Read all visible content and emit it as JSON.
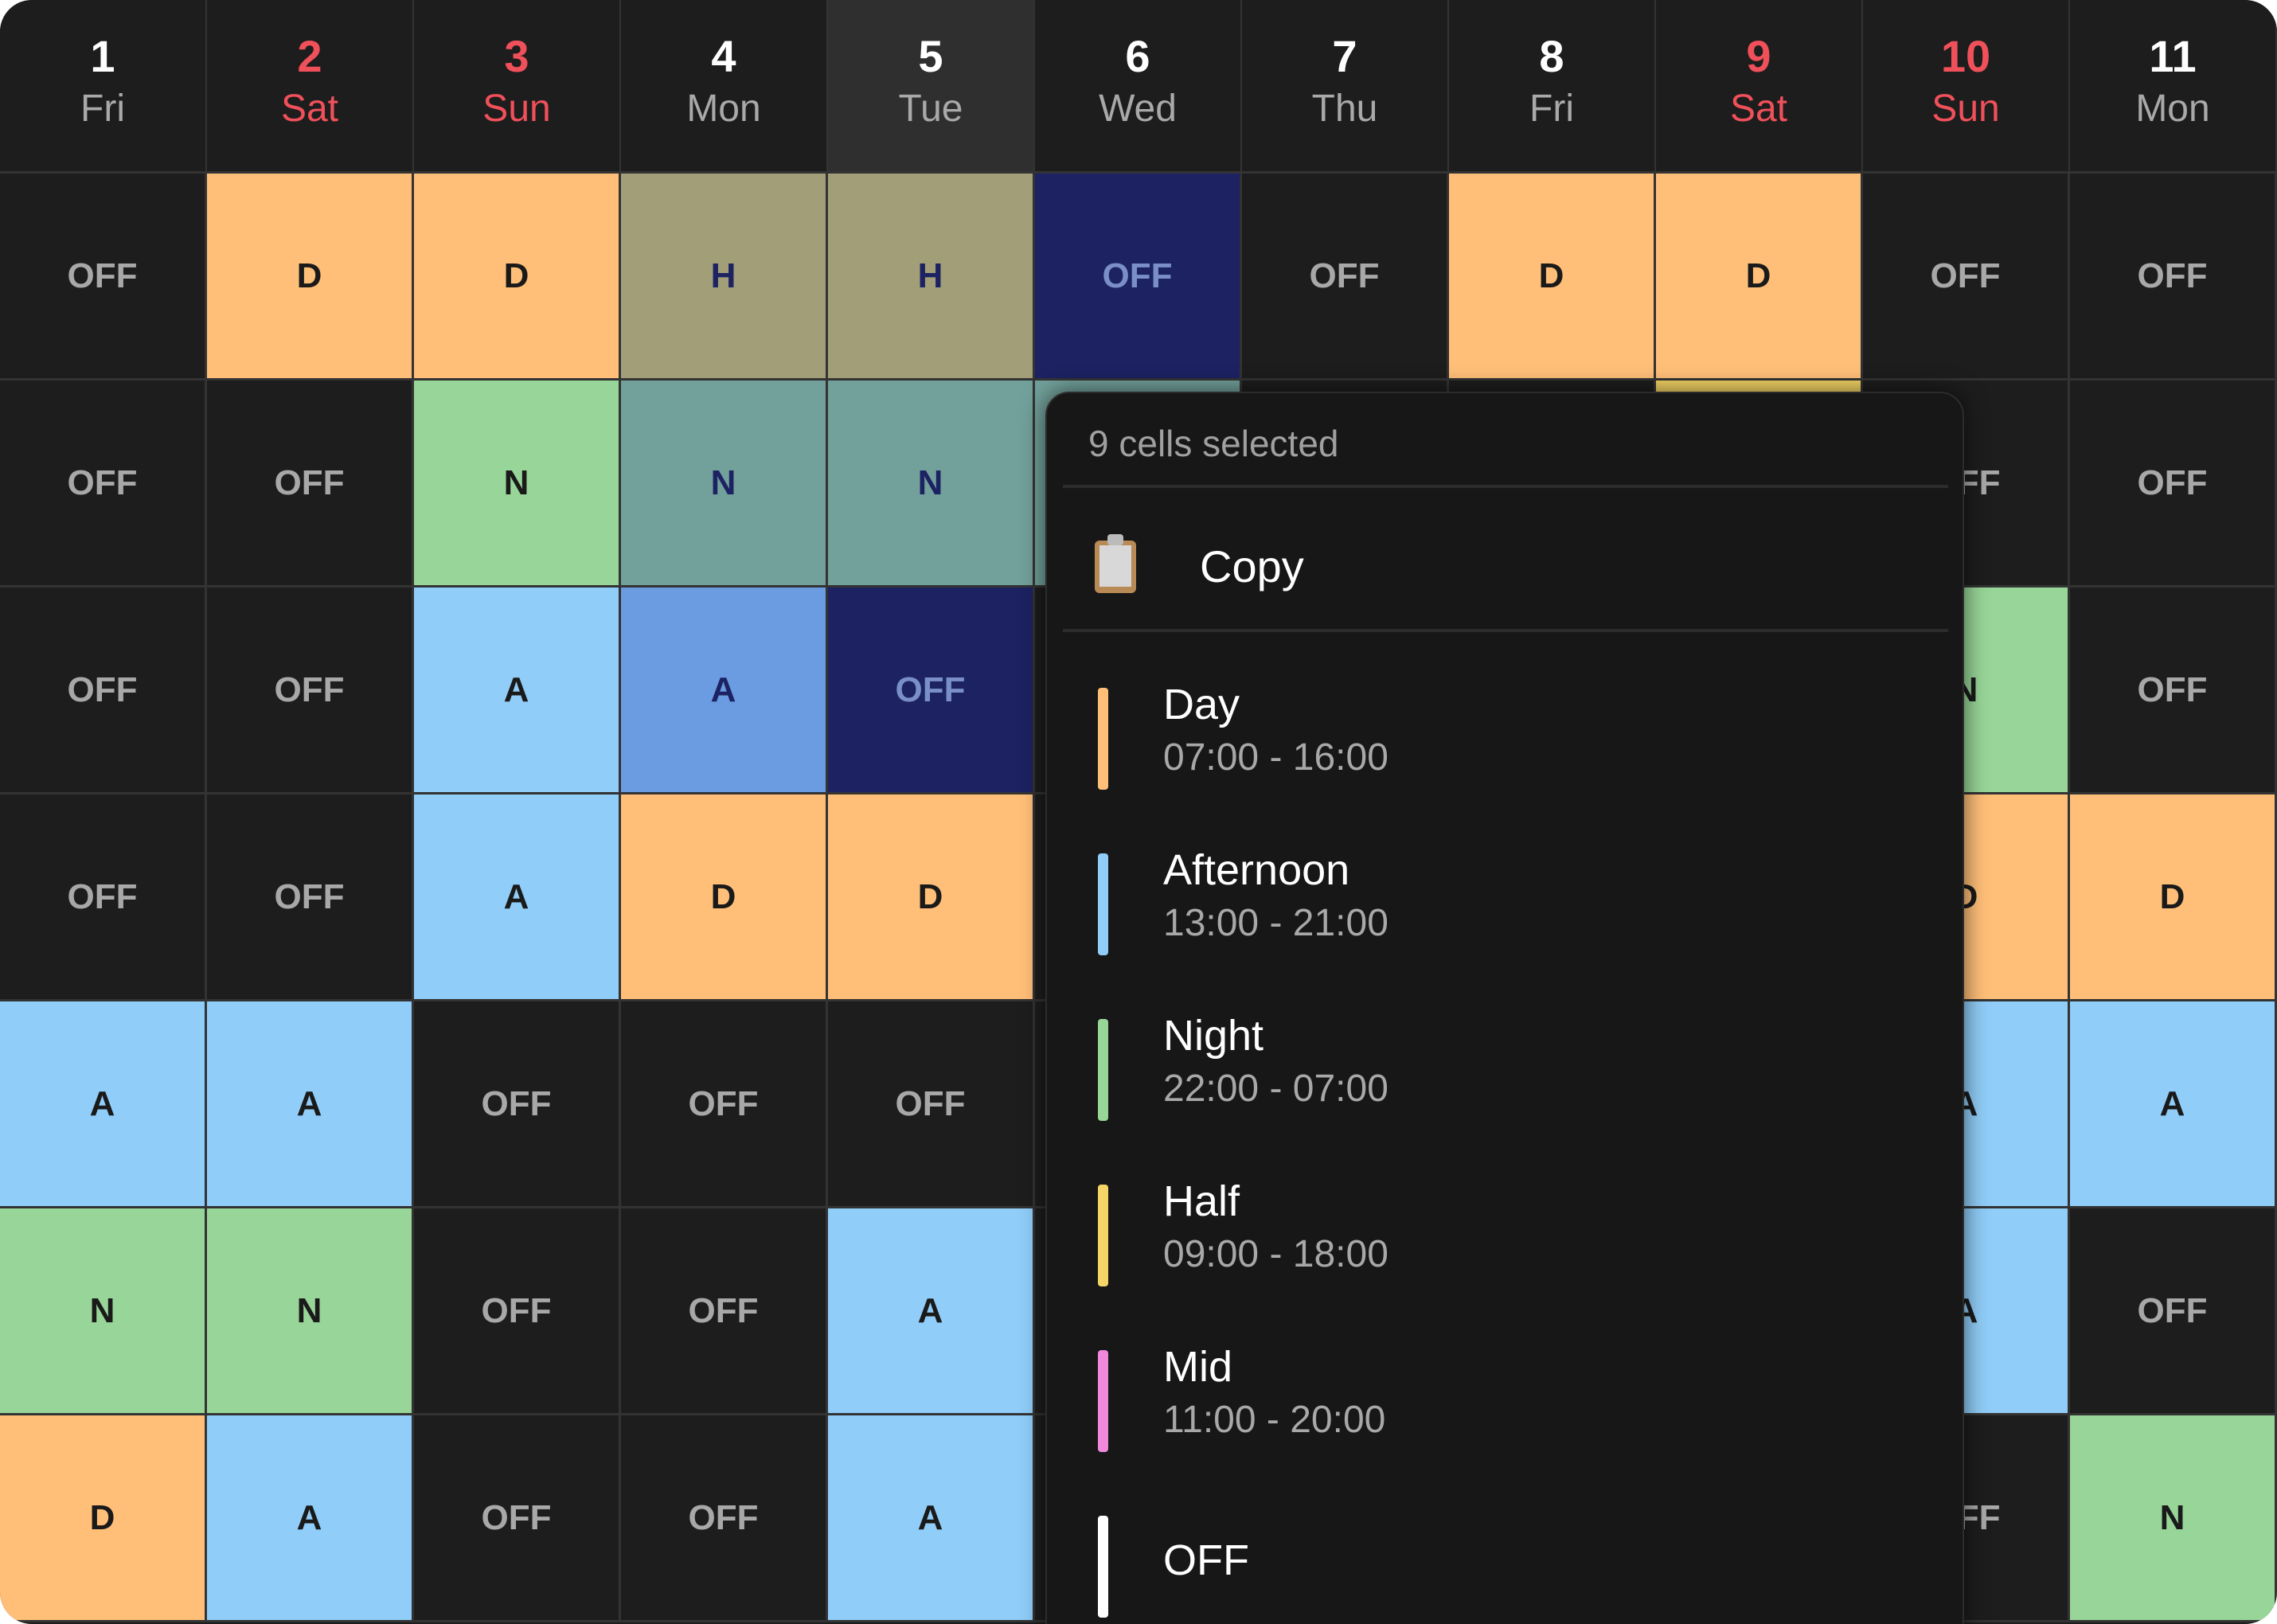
{
  "days": [
    {
      "num": "1",
      "dow": "Fri",
      "weekend": false
    },
    {
      "num": "2",
      "dow": "Sat",
      "weekend": true
    },
    {
      "num": "3",
      "dow": "Sun",
      "weekend": true
    },
    {
      "num": "4",
      "dow": "Mon",
      "weekend": false
    },
    {
      "num": "5",
      "dow": "Tue",
      "weekend": false,
      "today": true
    },
    {
      "num": "6",
      "dow": "Wed",
      "weekend": false
    },
    {
      "num": "7",
      "dow": "Thu",
      "weekend": false
    },
    {
      "num": "8",
      "dow": "Fri",
      "weekend": false
    },
    {
      "num": "9",
      "dow": "Sat",
      "weekend": true
    },
    {
      "num": "10",
      "dow": "Sun",
      "weekend": true
    },
    {
      "num": "11",
      "dow": "Mon",
      "weekend": false
    }
  ],
  "rows": [
    [
      "OFF",
      "D",
      "D",
      "H",
      "H",
      "OFF",
      "OFF",
      "D",
      "D",
      "OFF",
      "OFF"
    ],
    [
      "OFF",
      "OFF",
      "N",
      "N",
      "N",
      "N",
      "",
      "",
      "H",
      "OFF",
      "OFF"
    ],
    [
      "OFF",
      "OFF",
      "A",
      "A",
      "OFF",
      "",
      "",
      "",
      "",
      "N",
      "OFF"
    ],
    [
      "OFF",
      "OFF",
      "A",
      "D",
      "D",
      "",
      "",
      "",
      "",
      "D",
      "D"
    ],
    [
      "A",
      "A",
      "OFF",
      "OFF",
      "OFF",
      "",
      "",
      "",
      "",
      "A",
      "A"
    ],
    [
      "N",
      "N",
      "OFF",
      "OFF",
      "A",
      "",
      "",
      "",
      "",
      "A",
      "OFF"
    ],
    [
      "D",
      "A",
      "OFF",
      "OFF",
      "A",
      "",
      "",
      "",
      "",
      "OFF",
      "N"
    ]
  ],
  "selection": {
    "rows": [
      0,
      2
    ],
    "cols": [
      3,
      5
    ]
  },
  "colors": {
    "D": "#ffbf78",
    "A": "#90cdf8",
    "N": "#98d598",
    "H": "#f5d565",
    "M": "#f088dc",
    "OFF": "#1d1d1d",
    "sel_D": "#d8a36a",
    "sel_A": "#6b9be0",
    "sel_N": "#72a09a",
    "sel_H": "#a19e78",
    "sel_OFF": "#1c2262",
    "sel_OFF_text": "#7a8fc8",
    "sel_text": "#1c2262"
  },
  "menu": {
    "title": "9 cells selected",
    "copy_label": "Copy",
    "shifts": [
      {
        "name": "Day",
        "time": "07:00 - 16:00",
        "color": "#ffbf78"
      },
      {
        "name": "Afternoon",
        "time": "13:00 - 21:00",
        "color": "#90cdf8"
      },
      {
        "name": "Night",
        "time": "22:00 - 07:00",
        "color": "#98d598"
      },
      {
        "name": "Half",
        "time": "09:00 - 18:00",
        "color": "#f5d565"
      },
      {
        "name": "Mid",
        "time": "11:00 - 20:00",
        "color": "#f088dc"
      },
      {
        "name": "OFF",
        "time": "",
        "color": "#ffffff"
      }
    ]
  }
}
